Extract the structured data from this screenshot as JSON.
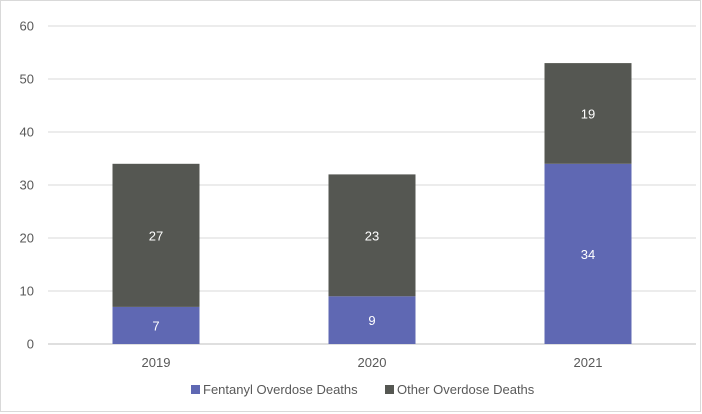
{
  "chart_data": {
    "type": "bar",
    "stacked": true,
    "categories": [
      "2019",
      "2020",
      "2021"
    ],
    "series": [
      {
        "name": "Fentanyl Overdose Deaths",
        "values": [
          7,
          9,
          34
        ],
        "color": "#5f68b3"
      },
      {
        "name": "Other Overdose Deaths",
        "values": [
          27,
          23,
          19
        ],
        "color": "#555752"
      }
    ],
    "ylim": [
      0,
      60
    ],
    "yticks": [
      0,
      10,
      20,
      30,
      40,
      50,
      60
    ],
    "ytick_labels": [
      "0",
      "10",
      "20",
      "30",
      "40",
      "50",
      "60"
    ],
    "grid": true,
    "legend_position": "bottom",
    "data_labels": true,
    "title": "",
    "xlabel": "",
    "ylabel": ""
  }
}
